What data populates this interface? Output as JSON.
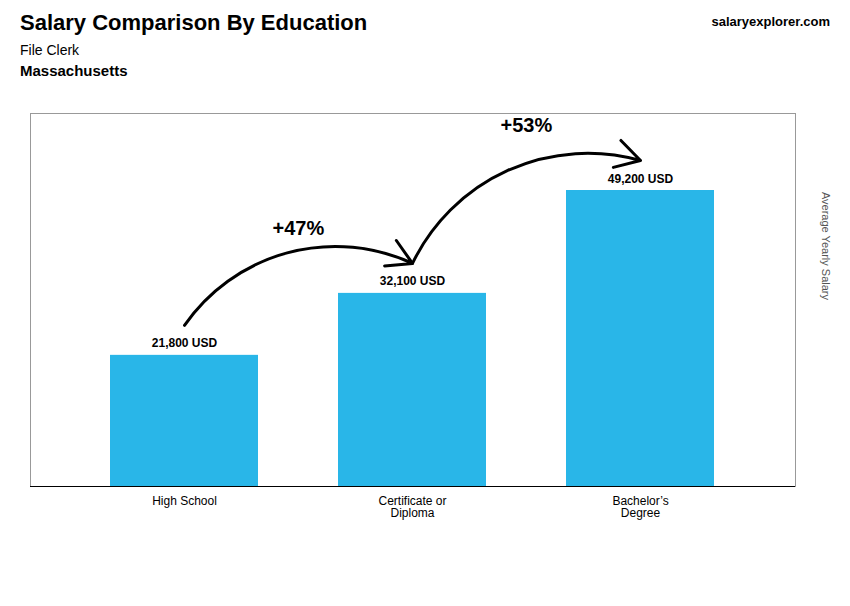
{
  "chart_data": {
    "type": "bar",
    "title": "Salary Comparison By Education",
    "subtitle": [
      "File Clerk",
      "Massachusetts"
    ],
    "ylabel": "Average Yearly Salary",
    "categories": [
      "High School",
      "Certificate or\nDiploma",
      "Bachelor’s\nDegree"
    ],
    "values": [
      21800,
      32100,
      49200
    ],
    "value_labels": [
      "21,800 USD",
      "32,100 USD",
      "49,200 USD"
    ],
    "data_labels": true,
    "color": "#29b6e8",
    "ylim": [
      0,
      62000
    ],
    "tick_labels": "x",
    "grid": false,
    "annotations": [
      {
        "text": "+47%",
        "from": "High School",
        "to": "Certificate or\nDiploma"
      },
      {
        "text": "+53%",
        "from": "Certificate or\nDiploma",
        "to": "Bachelor’s\nDegree"
      },
      {
        "text": "salaryexplorer.com"
      }
    ]
  }
}
